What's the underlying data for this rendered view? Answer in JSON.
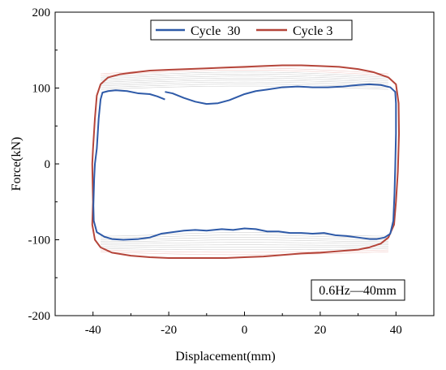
{
  "chart_data": {
    "type": "line",
    "xlabel": "Displacement(mm)",
    "ylabel": "Force(kN)",
    "xlim": [
      -50,
      50
    ],
    "ylim": [
      -200,
      200
    ],
    "xticks": [
      -40,
      -20,
      0,
      20,
      40
    ],
    "yticks": [
      -200,
      -100,
      0,
      100,
      200
    ],
    "grid": false,
    "legend_position": "top-center",
    "annotation": "0.6Hz—40mm",
    "series": [
      {
        "name": "Cycle  30",
        "color": "#2e5aa8",
        "points": [
          [
            -21,
            85
          ],
          [
            -23,
            89
          ],
          [
            -25,
            92
          ],
          [
            -28,
            93
          ],
          [
            -31,
            96
          ],
          [
            -34,
            97
          ],
          [
            -36,
            96
          ],
          [
            -37.5,
            94
          ],
          [
            -38,
            85
          ],
          [
            -38.5,
            60
          ],
          [
            -39,
            20
          ],
          [
            -39.5,
            0
          ],
          [
            -39.7,
            -20
          ],
          [
            -39.9,
            -55
          ],
          [
            -39.8,
            -75
          ],
          [
            -39,
            -90
          ],
          [
            -37,
            -96
          ],
          [
            -35,
            -99
          ],
          [
            -32,
            -100
          ],
          [
            -28,
            -99
          ],
          [
            -25,
            -97
          ],
          [
            -22,
            -92
          ],
          [
            -19,
            -90
          ],
          [
            -16,
            -88
          ],
          [
            -13,
            -87
          ],
          [
            -10,
            -88
          ],
          [
            -6,
            -86
          ],
          [
            -3,
            -87
          ],
          [
            0,
            -85
          ],
          [
            3,
            -86
          ],
          [
            6,
            -89
          ],
          [
            9,
            -89
          ],
          [
            12,
            -91
          ],
          [
            15,
            -91
          ],
          [
            18,
            -92
          ],
          [
            21,
            -91
          ],
          [
            24,
            -94
          ],
          [
            27,
            -95
          ],
          [
            30,
            -97
          ],
          [
            33,
            -99
          ],
          [
            35,
            -99
          ],
          [
            37,
            -97
          ],
          [
            38.5,
            -92
          ],
          [
            39.3,
            -75
          ],
          [
            39.6,
            -40
          ],
          [
            39.8,
            -5
          ],
          [
            40,
            40
          ],
          [
            40,
            80
          ],
          [
            39.8,
            95
          ],
          [
            38.5,
            101
          ],
          [
            36,
            104
          ],
          [
            33,
            105
          ],
          [
            30,
            104
          ],
          [
            26,
            102
          ],
          [
            22,
            101
          ],
          [
            18,
            101
          ],
          [
            14,
            102
          ],
          [
            10,
            101
          ],
          [
            6,
            98
          ],
          [
            3,
            96
          ],
          [
            0,
            92
          ],
          [
            -2,
            88
          ],
          [
            -4,
            84
          ],
          [
            -7,
            80
          ],
          [
            -10,
            79
          ],
          [
            -13,
            82
          ],
          [
            -16,
            87
          ],
          [
            -19,
            93
          ],
          [
            -21,
            95
          ]
        ]
      },
      {
        "name": "Cycle 3",
        "color": "#b5453a",
        "points": [
          [
            -40,
            -50
          ],
          [
            -40.2,
            -80
          ],
          [
            -39.5,
            -100
          ],
          [
            -38,
            -110
          ],
          [
            -35,
            -117
          ],
          [
            -30,
            -121
          ],
          [
            -25,
            -123
          ],
          [
            -20,
            -124
          ],
          [
            -15,
            -124
          ],
          [
            -10,
            -124
          ],
          [
            -5,
            -124
          ],
          [
            0,
            -123
          ],
          [
            5,
            -122
          ],
          [
            10,
            -120
          ],
          [
            15,
            -118
          ],
          [
            20,
            -117
          ],
          [
            25,
            -115
          ],
          [
            30,
            -113
          ],
          [
            33,
            -110
          ],
          [
            36,
            -105
          ],
          [
            38,
            -97
          ],
          [
            39.5,
            -80
          ],
          [
            40,
            -50
          ],
          [
            40.5,
            -10
          ],
          [
            40.8,
            40
          ],
          [
            40.7,
            80
          ],
          [
            40,
            105
          ],
          [
            38,
            114
          ],
          [
            34,
            121
          ],
          [
            30,
            125
          ],
          [
            25,
            128
          ],
          [
            20,
            129
          ],
          [
            15,
            130
          ],
          [
            10,
            130
          ],
          [
            5,
            129
          ],
          [
            0,
            128
          ],
          [
            -5,
            127
          ],
          [
            -10,
            126
          ],
          [
            -15,
            125
          ],
          [
            -20,
            124
          ],
          [
            -25,
            123
          ],
          [
            -30,
            120
          ],
          [
            -33,
            118
          ],
          [
            -36,
            114
          ],
          [
            -38,
            105
          ],
          [
            -39,
            90
          ],
          [
            -39.5,
            60
          ],
          [
            -40,
            20
          ],
          [
            -40.2,
            0
          ],
          [
            -40,
            -50
          ]
        ]
      }
    ]
  }
}
